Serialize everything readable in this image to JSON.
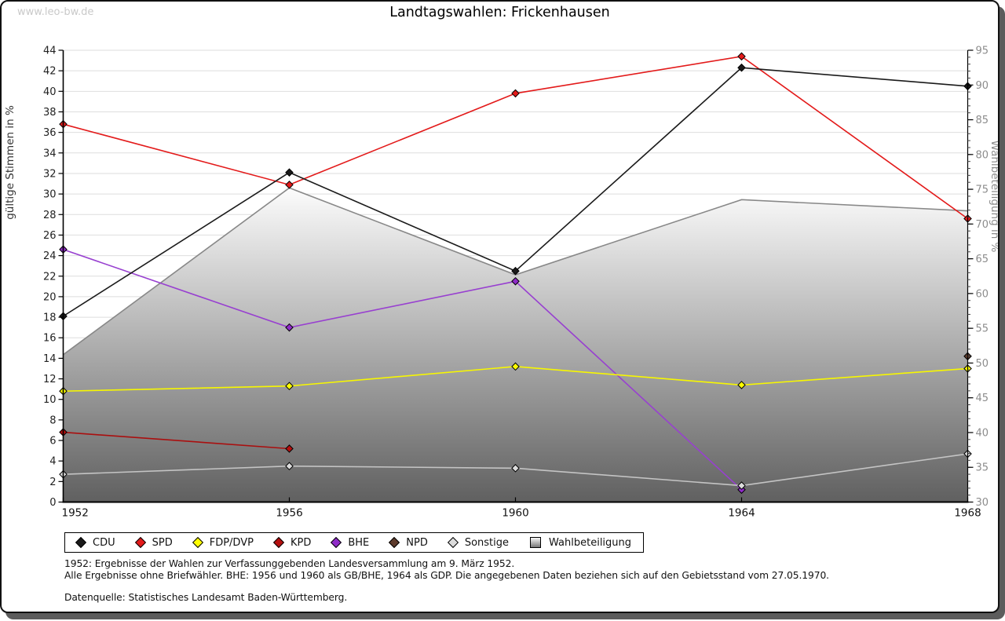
{
  "watermark": "www.leo-bw.de",
  "footnotes": [
    "1952: Ergebnisse der Wahlen zur Verfassunggebenden Landesversammlung am 9. März 1952.",
    "Alle Ergebnisse ohne Briefwähler. BHE: 1956 und 1960 als GB/BHE, 1964 als GDP. Die angegebenen Daten beziehen sich auf den Gebietsstand vom 27.05.1970.",
    "Datenquelle: Statistisches Landesamt Baden-Württemberg."
  ],
  "chart_data": {
    "type": "line",
    "title": "Landtagswahlen: Frickenhausen",
    "categories": [
      "1952",
      "1956",
      "1960",
      "1964",
      "1968"
    ],
    "y_left": {
      "label": "gültige Stimmen in %",
      "min": 0,
      "max": 44,
      "step": 2,
      "tick_color": "#222222",
      "label_color": "#333333"
    },
    "y_right": {
      "label": "Wahlbeteiligung in %",
      "min": 30,
      "max": 95,
      "step": 5,
      "minor_step": 1,
      "tick_color": "#8c8c8c",
      "label_color": "#8c8c8c"
    },
    "grid": {
      "on": true,
      "color": "#dedede"
    },
    "legend_position": "bottom",
    "series": [
      {
        "name": "CDU",
        "axis": "left",
        "color": "#1a1a1a",
        "marker": "#1a1a1a",
        "z": 7,
        "values": [
          18.1,
          32.1,
          22.5,
          42.3,
          40.5
        ]
      },
      {
        "name": "SPD",
        "axis": "left",
        "color": "#e31a1a",
        "marker": "#e31a1a",
        "z": 6,
        "values": [
          36.8,
          30.9,
          39.8,
          43.4,
          27.6
        ]
      },
      {
        "name": "FDP/DVP",
        "axis": "left",
        "color": "#f7f700",
        "marker": "#ffff00",
        "z": 4,
        "values": [
          10.8,
          11.3,
          13.2,
          11.4,
          13.0
        ]
      },
      {
        "name": "KPD",
        "axis": "left",
        "color": "#aa0f0f",
        "marker": "#b50f0f",
        "z": 1,
        "values": [
          6.8,
          5.2,
          null,
          null,
          null
        ]
      },
      {
        "name": "BHE",
        "axis": "left",
        "color": "#9840d0",
        "marker": "#8f2bc8",
        "z": 2,
        "values": [
          24.6,
          17.0,
          21.5,
          1.2,
          null
        ]
      },
      {
        "name": "NPD",
        "axis": "left",
        "color": "#5e3b2c",
        "marker": "#5e3b2c",
        "z": 5,
        "values": [
          null,
          null,
          null,
          null,
          14.2
        ]
      },
      {
        "name": "Sonstige",
        "axis": "left",
        "color": "#c4c4c4",
        "marker": "#dcdcdc",
        "z": 3,
        "values": [
          2.7,
          3.5,
          3.3,
          1.6,
          4.7
        ]
      }
    ],
    "area_series": {
      "name": "Wahlbeteiligung",
      "axis": "right",
      "stroke": "#888888",
      "fill_top": "#fcfcfc",
      "fill_bottom": "#606060",
      "values": [
        51.2,
        75.2,
        62.7,
        73.5,
        71.9
      ]
    }
  }
}
